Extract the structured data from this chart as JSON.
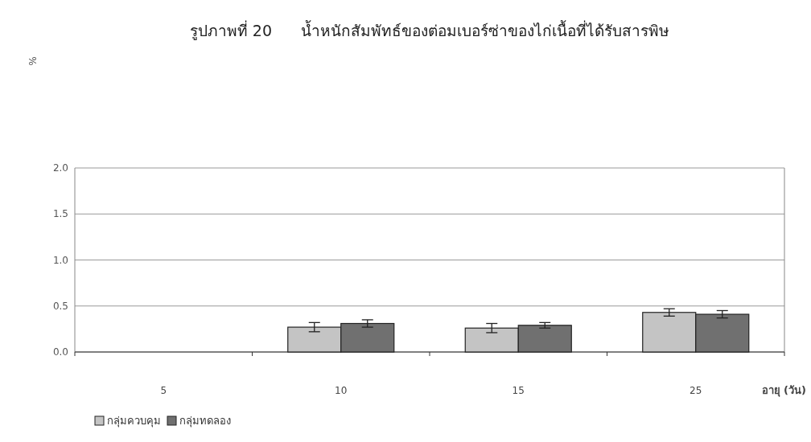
{
  "chart_data": {
    "type": "bar",
    "title": "รูปภาพที่ 20      น้ำหนักสัมพัทธ์ของต่อมเบอร์ซ่าของไก่เนื้อที่ได้รับสารพิษ",
    "annotations": [
      "%"
    ],
    "xlabel": "อายุ (วัน)",
    "categories": [
      "5",
      "10",
      "15",
      "25"
    ],
    "series": [
      {
        "name": "กลุ่มควบคุม",
        "color": "#c4c4c4",
        "values": [
          null,
          0.27,
          0.26,
          0.43
        ],
        "errors": [
          null,
          0.05,
          0.05,
          0.04
        ]
      },
      {
        "name": "กลุ่มทดลอง",
        "color": "#707070",
        "values": [
          null,
          0.31,
          0.29,
          0.41
        ],
        "errors": [
          null,
          0.04,
          0.03,
          0.04
        ]
      }
    ],
    "ylim": [
      0,
      2
    ],
    "yticks": [
      {
        "value": 0,
        "label": "0.0"
      },
      {
        "value": 0.5,
        "label": "0.5"
      },
      {
        "value": 1,
        "label": "1.0"
      },
      {
        "value": 1.5,
        "label": "1.5"
      },
      {
        "value": 2,
        "label": "2.0"
      }
    ],
    "grid": "y",
    "legend": "bottom left"
  }
}
